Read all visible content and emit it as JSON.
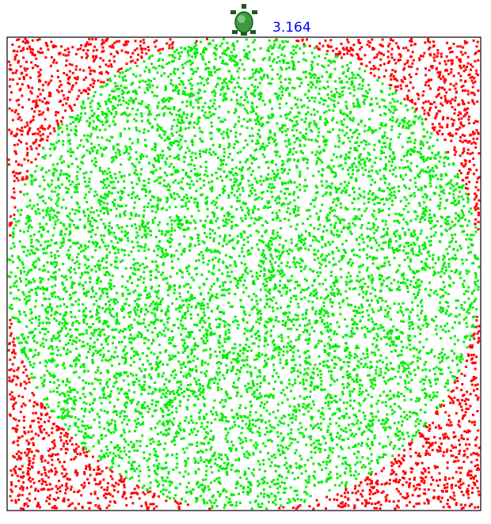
{
  "readout": {
    "pi_estimate": "3.164",
    "color": "#0000ff"
  },
  "turtle": {
    "icon": "turtle-icon",
    "shell_color": "#3c9a3c",
    "outline_color": "#1e5a1e"
  },
  "simulation": {
    "inside_color": "#00ee00",
    "outside_color": "#ff0000",
    "frame_color": "#000000",
    "domain": [
      -1,
      1
    ],
    "inside_fraction": 0.791
  }
}
